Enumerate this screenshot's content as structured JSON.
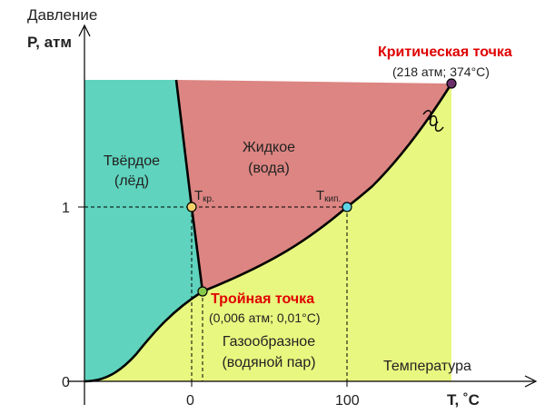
{
  "axes": {
    "y_top_caption": "Давление",
    "y_label": "P, атм",
    "x_label": "T, ˚С",
    "x_caption": "Температура",
    "y_ticks": [
      "0",
      "1"
    ],
    "x_ticks": [
      "0",
      "100"
    ]
  },
  "regions": {
    "solid": [
      "Твёрдое",
      "(лёд)"
    ],
    "liquid": [
      "Жидкое",
      "(вода)"
    ],
    "gas": [
      "Газообразное",
      "(водяной пар)"
    ]
  },
  "points": {
    "critical": {
      "title": "Критическая точка",
      "value": "(218 атм; 374°C)"
    },
    "triple": {
      "title": "Тройная точка",
      "value": "(0,006 атм; 0,01°C)"
    },
    "melting": {
      "label_main": "T",
      "label_sub": "кр."
    },
    "boiling": {
      "label_main": "T",
      "label_sub": "кип."
    }
  },
  "colors": {
    "solid": "#5fd3bd",
    "liquid": "#dc8582",
    "gas": "#e8f77f",
    "critical_text": "#e00000",
    "triple_text": "#e00000",
    "critical_point": "#6b2e6b",
    "triple_point": "#86c94a",
    "melting_point": "#f7d26a",
    "boiling_point": "#5fd3e6"
  }
}
